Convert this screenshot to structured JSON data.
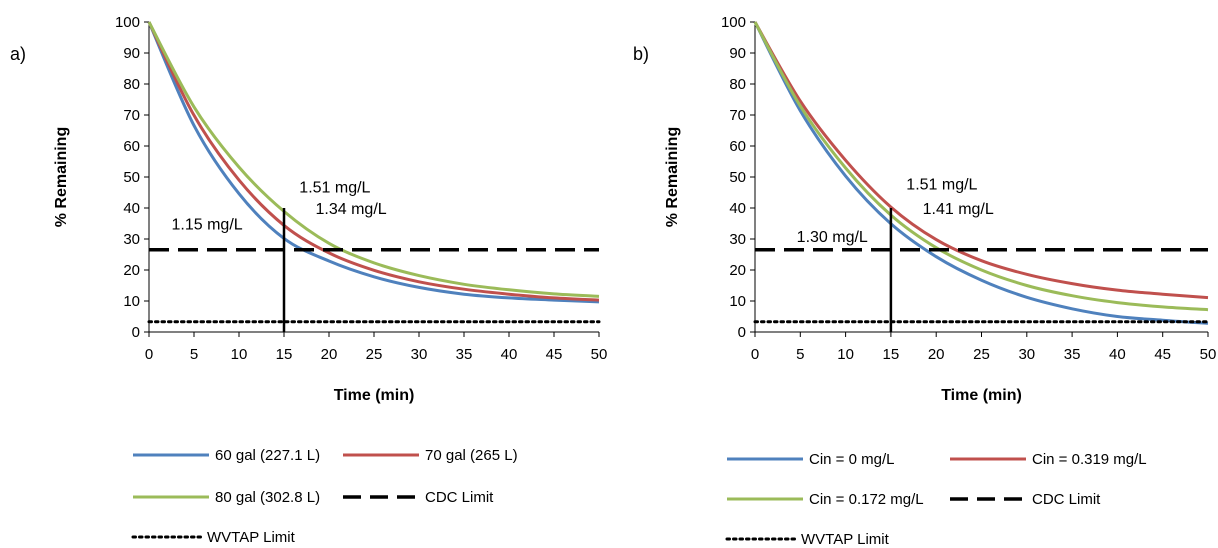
{
  "chart_data": [
    {
      "type": "line",
      "panel_label": "a)",
      "xlabel": "Time (min)",
      "ylabel": "% Remaining",
      "xlim": [
        0,
        50
      ],
      "ylim": [
        0,
        100
      ],
      "x_ticks": [
        0,
        5,
        10,
        15,
        20,
        25,
        30,
        35,
        40,
        45,
        50
      ],
      "y_ticks": [
        0,
        10,
        20,
        30,
        40,
        50,
        60,
        70,
        80,
        90,
        100
      ],
      "grid": false,
      "legend_position": "bottom",
      "x": [
        0,
        5,
        10,
        15,
        20,
        25,
        30,
        35,
        40,
        45,
        50
      ],
      "series": [
        {
          "name": "60 gal (227.1 L)",
          "color": "#4f81bd",
          "style": "solid",
          "values": [
            100,
            66.6,
            44.6,
            30.2,
            22.9,
            17.8,
            14.4,
            12.2,
            11.0,
            10.3,
            9.7
          ]
        },
        {
          "name": "70 gal (265 L)",
          "color": "#c0504d",
          "style": "solid",
          "values": [
            100,
            69.9,
            49.0,
            34.4,
            25.5,
            19.9,
            16.2,
            13.8,
            12.2,
            11.0,
            10.3
          ]
        },
        {
          "name": "80 gal (302.8 L)",
          "color": "#9bbb59",
          "style": "solid",
          "values": [
            100,
            72.6,
            53.2,
            38.9,
            28.6,
            22.3,
            18.2,
            15.4,
            13.6,
            12.3,
            11.5
          ]
        },
        {
          "name": "CDC Limit",
          "color": "#000000",
          "style": "dashed",
          "values": [
            26.5,
            26.5,
            26.5,
            26.5,
            26.5,
            26.5,
            26.5,
            26.5,
            26.5,
            26.5,
            26.5
          ]
        },
        {
          "name": "WVTAP Limit",
          "color": "#000000",
          "style": "dotted",
          "values": [
            3.3,
            3.3,
            3.3,
            3.3,
            3.3,
            3.3,
            3.3,
            3.3,
            3.3,
            3.3,
            3.3
          ]
        }
      ],
      "marker_line": {
        "x": 15,
        "y_from": 0,
        "y_to": 40
      },
      "annotations": [
        {
          "text": "1.51 mg/L",
          "x": 16.7,
          "y": 45
        },
        {
          "text": "1.34 mg/L",
          "x": 18.5,
          "y": 38
        },
        {
          "text": "1.15 mg/L",
          "x": 2.5,
          "y": 33
        }
      ]
    },
    {
      "type": "line",
      "panel_label": "b)",
      "xlabel": "Time (min)",
      "ylabel": "% Remaining",
      "xlim": [
        0,
        50
      ],
      "ylim": [
        0,
        100
      ],
      "x_ticks": [
        0,
        5,
        10,
        15,
        20,
        25,
        30,
        35,
        40,
        45,
        50
      ],
      "y_ticks": [
        0,
        10,
        20,
        30,
        40,
        50,
        60,
        70,
        80,
        90,
        100
      ],
      "grid": false,
      "legend_position": "bottom",
      "x": [
        0,
        5,
        10,
        15,
        20,
        25,
        30,
        35,
        40,
        45,
        50
      ],
      "series": [
        {
          "name": "Cin = 0 mg/L",
          "color": "#4f81bd",
          "style": "solid",
          "values": [
            100,
            71.4,
            50.3,
            34.9,
            24.3,
            16.7,
            11.2,
            7.5,
            5.0,
            3.8,
            2.8
          ]
        },
        {
          "name": "Cin = 0.319 mg/L",
          "color": "#c0504d",
          "style": "solid",
          "values": [
            100,
            74.5,
            55.4,
            40.3,
            29.8,
            23.0,
            18.6,
            15.6,
            13.5,
            12.2,
            11.1
          ]
        },
        {
          "name": "Cin = 0.172 mg/L",
          "color": "#9bbb59",
          "style": "solid",
          "values": [
            100,
            72.9,
            52.9,
            37.7,
            27.2,
            20.0,
            15.0,
            11.7,
            9.5,
            8.1,
            7.2
          ]
        },
        {
          "name": "CDC Limit",
          "color": "#000000",
          "style": "dashed",
          "values": [
            26.5,
            26.5,
            26.5,
            26.5,
            26.5,
            26.5,
            26.5,
            26.5,
            26.5,
            26.5,
            26.5
          ]
        },
        {
          "name": "WVTAP Limit",
          "color": "#000000",
          "style": "dotted",
          "values": [
            3.3,
            3.3,
            3.3,
            3.3,
            3.3,
            3.3,
            3.3,
            3.3,
            3.3,
            3.3,
            3.3
          ]
        }
      ],
      "marker_line": {
        "x": 15,
        "y_from": 0,
        "y_to": 40
      },
      "annotations": [
        {
          "text": "1.51 mg/L",
          "x": 16.7,
          "y": 46
        },
        {
          "text": "1.41 mg/L",
          "x": 18.5,
          "y": 38
        },
        {
          "text": "1.30 mg/L",
          "x": 4.6,
          "y": 29
        }
      ]
    }
  ]
}
